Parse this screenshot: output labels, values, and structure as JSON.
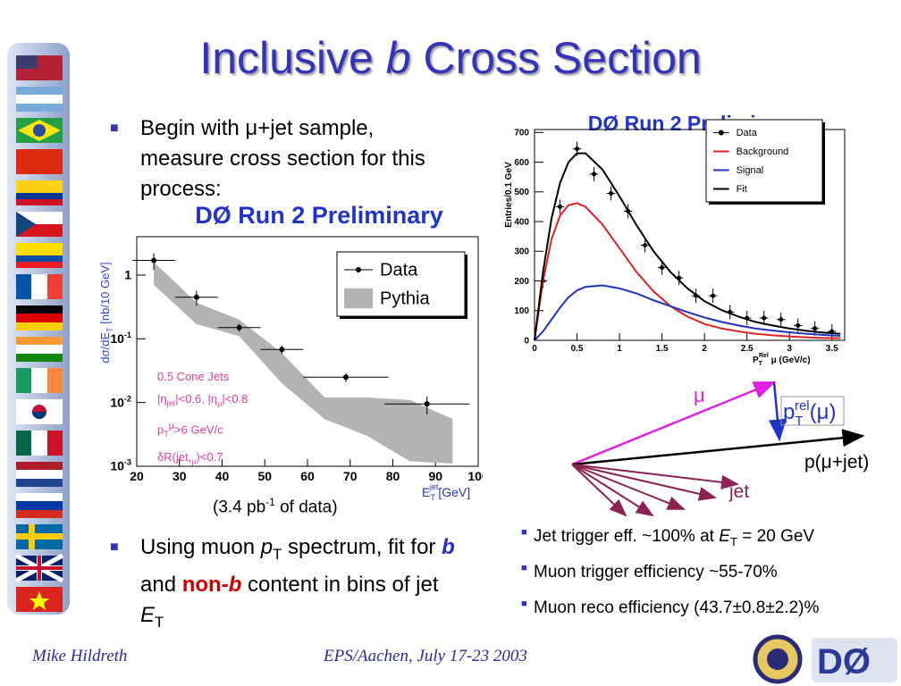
{
  "title": [
    "Inclusive ",
    "b",
    " Cross Section"
  ],
  "bullets_left": [
    [
      "Begin with μ+jet sample, measure cross section for this process:"
    ],
    [
      "Using muon ",
      "p",
      "T",
      " spectrum, fit for ",
      "b",
      " and ",
      "non-",
      "b",
      " content in bins of jet ",
      "E",
      "T"
    ]
  ],
  "luminosity_note": [
    "(3.4 pb",
    "-1",
    " of data)"
  ],
  "bullets_right": [
    [
      "Jet trigger eff. ~100% at ",
      "E",
      "T",
      " = 20 GeV"
    ],
    [
      "Muon trigger efficiency ~55-70%"
    ],
    [
      "Muon reco efficiency (43.7±0.8±2.2)%"
    ]
  ],
  "diagram": {
    "mu": "μ",
    "ptrel": [
      "p",
      "T",
      "rel",
      "(μ)"
    ],
    "sum": "p(μ+jet)",
    "jet": "jet"
  },
  "footer": {
    "author": "Mike Hildreth",
    "event": "EPS/Aachen, July 17-23 2003"
  },
  "chart_data": [
    {
      "type": "scatter",
      "title": "DØ Run 2 Preliminary",
      "y_label": [
        "dσ/dE",
        "T",
        " [nb/10 GeV]"
      ],
      "x_label": [
        "E",
        "T",
        "jet",
        "[GeV]"
      ],
      "annotations": [
        [
          "0.5 Cone Jets"
        ],
        [
          "|η",
          "jet",
          "|<0.6, |η",
          "μ",
          "|<0.8"
        ],
        [
          "p",
          "T",
          "μ",
          ">6 GeV/c"
        ],
        [
          "δR(jet,",
          "μ",
          ")<0.7"
        ]
      ],
      "annotation_color": "#e0409a",
      "log_y": true,
      "xlim": [
        20,
        100
      ],
      "ylim": [
        0.001,
        4
      ],
      "xticks": [
        20,
        30,
        40,
        50,
        60,
        70,
        80,
        90,
        100
      ],
      "yticks": [
        {
          "value": 0.001,
          "label": "10",
          "exp": "-3"
        },
        {
          "value": 0.01,
          "label": "10",
          "exp": "-2"
        },
        {
          "value": 0.1,
          "label": "10",
          "exp": "-1"
        },
        1
      ],
      "legend": "top-right",
      "series": [
        {
          "name": "Pythia",
          "color": "#b3b3b3",
          "mark": "band",
          "x": [
            24,
            34,
            44,
            54,
            64,
            74,
            84,
            94
          ],
          "upper": [
            1.6,
            0.37,
            0.2,
            0.06,
            0.012,
            0.012,
            0.011,
            0.0055
          ],
          "lower": [
            0.7,
            0.17,
            0.11,
            0.02,
            0.0055,
            0.003,
            0.0012,
            0.0011
          ]
        },
        {
          "name": "Data",
          "color": "#000000",
          "mark": "points",
          "x": [
            24,
            34,
            44,
            54,
            69,
            88
          ],
          "values": [
            1.7,
            0.45,
            0.15,
            0.068,
            0.025,
            0.0095
          ],
          "xerr": [
            5,
            5,
            5,
            5,
            10,
            10
          ],
          "yerr": [
            0.5,
            0.12,
            0.02,
            0.01,
            0.004,
            0.003
          ]
        }
      ]
    },
    {
      "type": "scatter",
      "title": "DØ Run 2 Preliminary",
      "y_label": [
        "Entries/0.1 GeV"
      ],
      "x_label": [
        "P",
        "T",
        "Rel",
        " μ (GeV/c)"
      ],
      "log_y": false,
      "xlim": [
        0,
        3.65
      ],
      "ylim": [
        0,
        710
      ],
      "xticks": [
        0,
        0.5,
        1,
        1.5,
        2,
        2.5,
        3,
        3.5
      ],
      "yticks": [
        0,
        100,
        200,
        300,
        400,
        500,
        600,
        700
      ],
      "legend": "top-right",
      "series": [
        {
          "name": "Data",
          "color": "#000000",
          "mark": "points",
          "x": [
            0.1,
            0.3,
            0.5,
            0.7,
            0.9,
            1.1,
            1.3,
            1.5,
            1.7,
            1.9,
            2.1,
            2.3,
            2.5,
            2.7,
            2.9,
            3.1,
            3.3,
            3.5
          ],
          "values": [
            200,
            450,
            645,
            560,
            495,
            435,
            320,
            245,
            210,
            150,
            150,
            95,
            75,
            75,
            70,
            50,
            40,
            30
          ]
        },
        {
          "name": "Background",
          "color": "#dd2222",
          "mark": "line",
          "x": [
            0,
            0.1,
            0.2,
            0.3,
            0.4,
            0.5,
            0.6,
            0.8,
            1.0,
            1.2,
            1.4,
            1.6,
            1.8,
            2.0,
            2.2,
            2.4,
            2.6,
            2.8,
            3.0,
            3.2,
            3.4,
            3.6
          ],
          "values": [
            0,
            200,
            340,
            420,
            455,
            462,
            450,
            390,
            310,
            230,
            165,
            115,
            80,
            55,
            40,
            30,
            22,
            17,
            13,
            10,
            8,
            7
          ]
        },
        {
          "name": "Signal",
          "color": "#2233bb",
          "mark": "line",
          "x": [
            0,
            0.1,
            0.2,
            0.3,
            0.4,
            0.5,
            0.6,
            0.8,
            1.0,
            1.2,
            1.4,
            1.6,
            1.8,
            2.0,
            2.2,
            2.4,
            2.6,
            2.8,
            3.0,
            3.2,
            3.4,
            3.6
          ],
          "values": [
            0,
            30,
            70,
            110,
            145,
            168,
            180,
            185,
            175,
            158,
            135,
            115,
            95,
            77,
            62,
            50,
            40,
            33,
            27,
            22,
            18,
            15
          ]
        },
        {
          "name": "Fit",
          "color": "#000000",
          "mark": "line",
          "x": [
            0,
            0.1,
            0.2,
            0.3,
            0.4,
            0.5,
            0.6,
            0.8,
            1.0,
            1.2,
            1.4,
            1.6,
            1.8,
            2.0,
            2.2,
            2.4,
            2.6,
            2.8,
            3.0,
            3.2,
            3.4,
            3.6
          ],
          "values": [
            0,
            230,
            410,
            530,
            600,
            630,
            630,
            575,
            485,
            388,
            300,
            230,
            175,
            132,
            102,
            80,
            62,
            50,
            40,
            32,
            26,
            22
          ]
        }
      ]
    }
  ]
}
